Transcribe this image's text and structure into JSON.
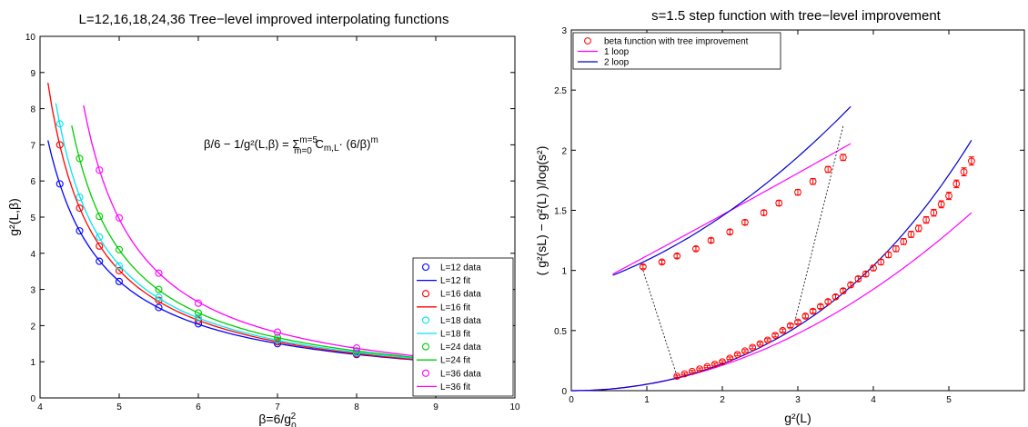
{
  "chart_data": [
    {
      "type": "line",
      "title": "L=12,16,18,24,36   Tree−level improved interpolating functions",
      "xlabel_main": "β=6/g",
      "xlabel_sub": "0",
      "xlabel_sup": "2",
      "ylabel": "g²(L,β)",
      "xlim": [
        4,
        10
      ],
      "ylim": [
        0,
        10
      ],
      "xticks": [
        "4",
        "5",
        "6",
        "7",
        "8",
        "9",
        "10"
      ],
      "yticks": [
        "0",
        "1",
        "2",
        "3",
        "4",
        "5",
        "6",
        "7",
        "8",
        "9",
        "10"
      ],
      "annotation": {
        "lhs": "β/6 − 1/g²(L,β) = Σ",
        "sup": "m=5",
        "sub": "m=0",
        "rhs": " C",
        "rhs_sub": "m,L",
        "rhs2": "· (6/β)",
        "rhs_sup": "m"
      },
      "legend_position": "bottom-right",
      "legend": [
        "L=12 data",
        "L=12 fit",
        "L=16 data",
        "L=16 fit",
        "L=18 data",
        "L=18 fit",
        "L=24 data",
        "L=24 fit",
        "L=36 data",
        "L=36 fit"
      ],
      "series": [
        {
          "name": "L=12",
          "color": "#0000ff",
          "data_x": [
            4.25,
            4.5,
            4.75,
            5.0,
            5.5,
            6.0,
            7.0,
            8.0
          ],
          "data_y": [
            5.92,
            4.62,
            3.78,
            3.22,
            2.5,
            2.05,
            1.5,
            1.2
          ],
          "fit_range": [
            4.1,
            9.4
          ]
        },
        {
          "name": "L=16",
          "color": "#ff0000",
          "data_x": [
            4.25,
            4.5,
            4.75,
            5.0,
            5.5,
            6.0,
            7.0,
            8.0
          ],
          "data_y": [
            7.0,
            5.25,
            4.2,
            3.52,
            2.7,
            2.15,
            1.55,
            1.22
          ],
          "fit_range": [
            4.1,
            9.4
          ]
        },
        {
          "name": "L=18",
          "color": "#00e5ee",
          "data_x": [
            4.25,
            4.5,
            4.75,
            5.0,
            5.5,
            6.0,
            7.0,
            8.0
          ],
          "data_y": [
            7.58,
            5.55,
            4.45,
            3.65,
            2.78,
            2.22,
            1.6,
            1.25
          ],
          "fit_range": [
            4.2,
            9.4
          ]
        },
        {
          "name": "L=24",
          "color": "#00cc00",
          "data_x": [
            4.5,
            4.75,
            5.0,
            5.5,
            6.0,
            7.0,
            8.0
          ],
          "data_y": [
            6.62,
            5.02,
            4.1,
            3.0,
            2.35,
            1.67,
            1.3
          ],
          "fit_range": [
            4.4,
            9.4
          ]
        },
        {
          "name": "L=36",
          "color": "#ff00ff",
          "data_x": [
            4.75,
            5.0,
            5.5,
            6.0,
            7.0,
            8.0
          ],
          "data_y": [
            6.3,
            4.98,
            3.45,
            2.62,
            1.82,
            1.38
          ],
          "fit_range": [
            4.55,
            9.4
          ]
        }
      ]
    },
    {
      "type": "scatter",
      "title": "s=1.5 step function with tree−level improvement",
      "xlabel": "g²(L)",
      "ylabel": "( g²(sL) − g²(L) )/log(s²)",
      "xlim": [
        0,
        6
      ],
      "ylim": [
        0,
        3
      ],
      "xticks": [
        "0",
        "1",
        "2",
        "3",
        "4",
        "5"
      ],
      "yticks": [
        "0",
        "0.5",
        "1",
        "1.5",
        "2",
        "2.5",
        "3"
      ],
      "legend_position": "top-left",
      "legend": [
        "beta function with tree improvement",
        "1 loop",
        "2 loop"
      ],
      "main_data": {
        "x": [
          1.4,
          1.5,
          1.6,
          1.7,
          1.8,
          1.9,
          2.0,
          2.1,
          2.2,
          2.3,
          2.4,
          2.5,
          2.6,
          2.7,
          2.8,
          2.9,
          3.0,
          3.1,
          3.2,
          3.3,
          3.4,
          3.5,
          3.6,
          3.7,
          3.8,
          3.9,
          4.0,
          4.1,
          4.2,
          4.3,
          4.4,
          4.5,
          4.6,
          4.7,
          4.8,
          4.9,
          5.0,
          5.1,
          5.2,
          5.3
        ],
        "y": [
          0.12,
          0.14,
          0.16,
          0.18,
          0.2,
          0.22,
          0.24,
          0.27,
          0.3,
          0.33,
          0.36,
          0.39,
          0.42,
          0.46,
          0.5,
          0.54,
          0.57,
          0.62,
          0.66,
          0.7,
          0.74,
          0.78,
          0.83,
          0.88,
          0.93,
          0.97,
          1.02,
          1.07,
          1.13,
          1.18,
          1.24,
          1.3,
          1.35,
          1.42,
          1.48,
          1.55,
          1.62,
          1.72,
          1.82,
          1.91
        ]
      },
      "inset_data": {
        "x": [
          0.95,
          1.2,
          1.4,
          1.65,
          1.85,
          2.1,
          2.3,
          2.55,
          2.75,
          3.0,
          3.2,
          3.4,
          3.6
        ],
        "y": [
          1.03,
          1.07,
          1.12,
          1.18,
          1.25,
          1.32,
          1.4,
          1.48,
          1.56,
          1.65,
          1.74,
          1.84,
          1.94
        ]
      },
      "one_loop_coef": 0.0527,
      "two_loop_coef": 0.0527
    }
  ]
}
